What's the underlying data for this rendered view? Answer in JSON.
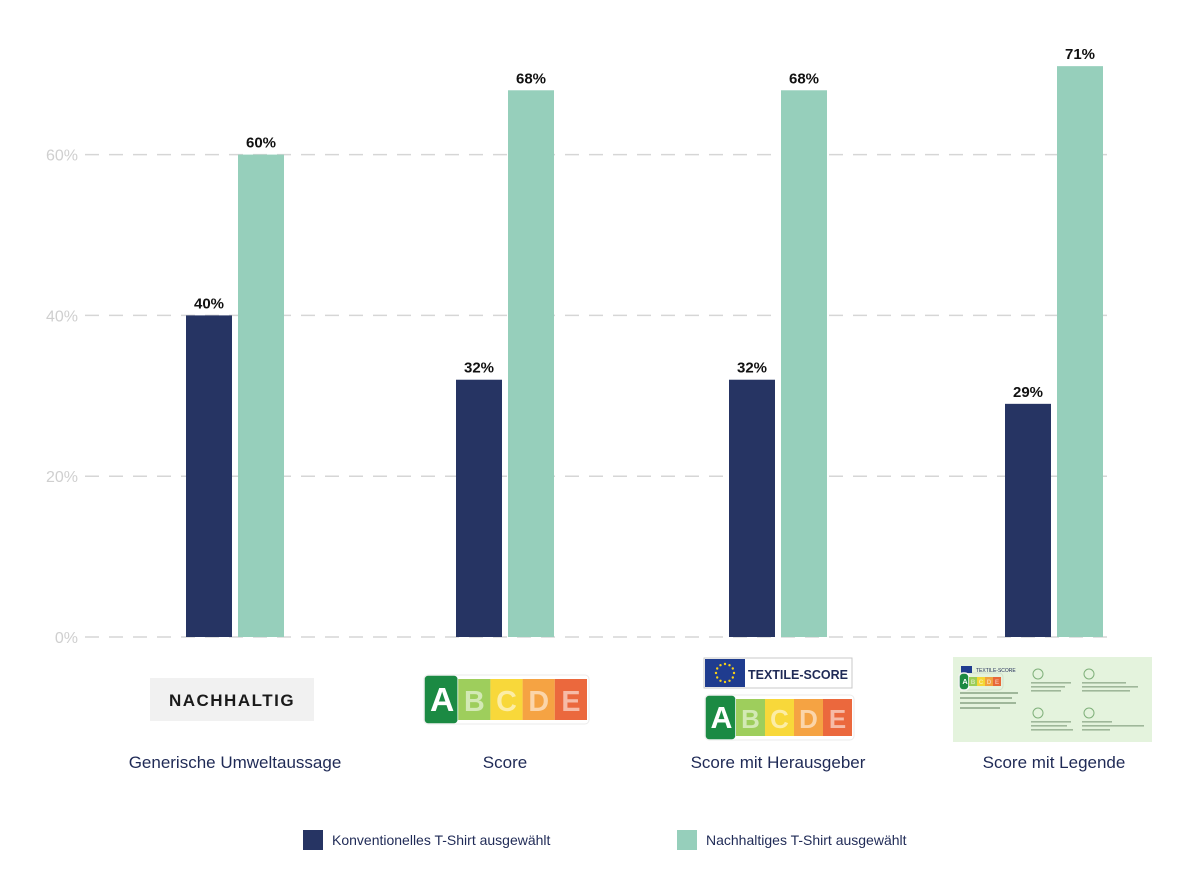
{
  "chart_data": {
    "type": "bar",
    "categories": [
      "Generische Umweltaussage",
      "Score",
      "Score mit Herausgeber",
      "Score mit Legende"
    ],
    "series": [
      {
        "name": "Konventionelles T-Shirt ausgewählt",
        "color": "#263463",
        "values": [
          40,
          32,
          32,
          29
        ]
      },
      {
        "name": "Nachhaltiges T-Shirt ausgewählt",
        "color": "#96cfbb",
        "values": [
          60,
          68,
          68,
          71
        ]
      }
    ],
    "value_labels": [
      [
        "40%",
        "32%",
        "32%",
        "29%"
      ],
      [
        "60%",
        "68%",
        "68%",
        "71%"
      ]
    ],
    "yticks": [
      0,
      20,
      40,
      60
    ],
    "ytick_labels": [
      "0%",
      "20%",
      "40%",
      "60%"
    ],
    "ylim": [
      0,
      80
    ],
    "grid": true,
    "legend_position": "bottom-center",
    "title": "",
    "xlabel": "",
    "ylabel": ""
  },
  "badges": {
    "nachhaltig": {
      "text": "NACHHALTIG"
    },
    "score_letters": [
      "A",
      "B",
      "C",
      "D",
      "E"
    ],
    "score_colors": [
      "#1b8a43",
      "#8dc63f",
      "#f7d117",
      "#f39322",
      "#e84e1b"
    ],
    "textile_score": {
      "text": "TEXTILE-SCORE",
      "eu_color": "#1f3c8f"
    },
    "legend_panel": {
      "color": "#e4f3dd",
      "title": "TEXTILE-SCORE"
    }
  },
  "colors": {
    "grid": "#d6d6d6",
    "axis_text": "#cfcfcf",
    "category_text": "#1f2a56"
  }
}
